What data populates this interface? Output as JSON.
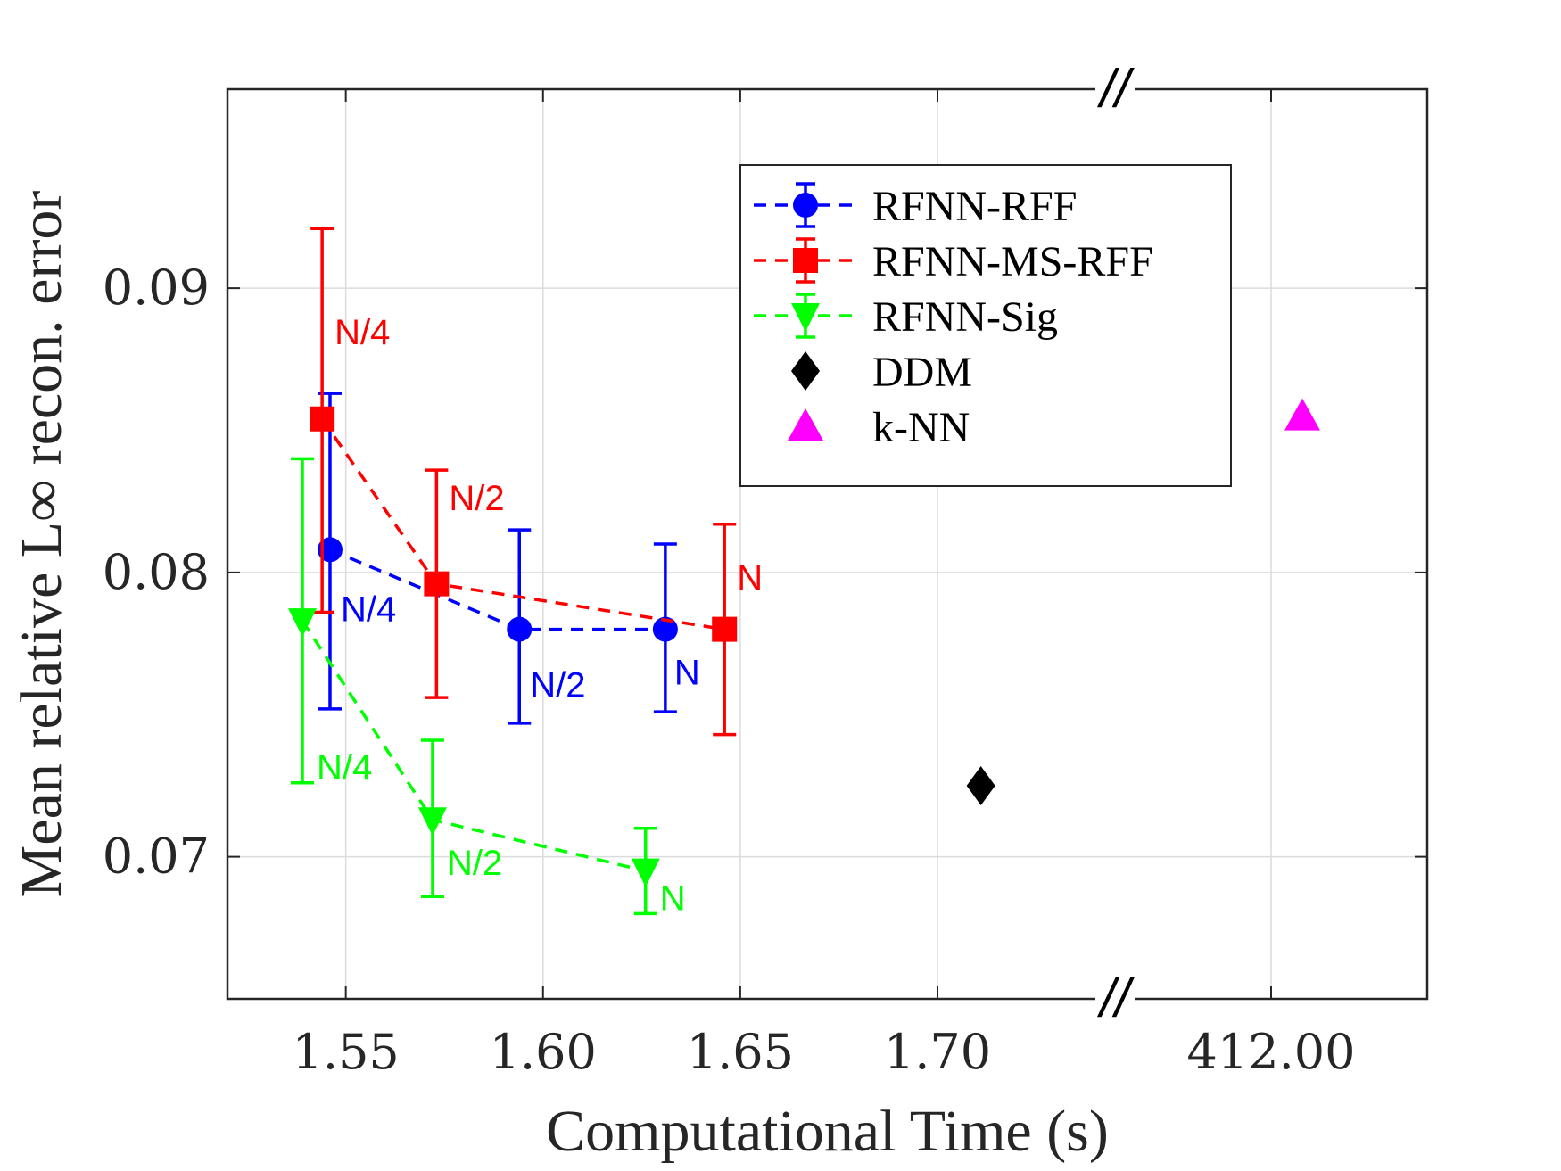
{
  "chart_data": {
    "type": "scatter",
    "xlabel": "Computational Time (s)",
    "ylabel": "Mean relative L∞ recon. error",
    "x_ticks": [
      1.55,
      1.6,
      1.65,
      1.7,
      412.0
    ],
    "x_tick_labels": [
      "1.55",
      "1.60",
      "1.65",
      "1.70",
      "412.00"
    ],
    "x_break": {
      "after": 1.745,
      "resume": 411.97
    },
    "xlim": [
      1.52,
      412.03
    ],
    "ylim": [
      0.065,
      0.097
    ],
    "y_ticks": [
      0.07,
      0.08,
      0.09
    ],
    "y_tick_labels": [
      "0.07",
      "0.08",
      "0.09"
    ],
    "grid": true,
    "legend_position": "top-right",
    "series": [
      {
        "name": "RFNN-RFF",
        "color": "#0000ff",
        "marker": "circle",
        "line": "dashed",
        "points": [
          {
            "x": 1.546,
            "y": 0.0808,
            "err_low": 0.0752,
            "err_high": 0.0863,
            "label": "N/4"
          },
          {
            "x": 1.594,
            "y": 0.078,
            "err_low": 0.0747,
            "err_high": 0.0815,
            "label": "N/2"
          },
          {
            "x": 1.631,
            "y": 0.078,
            "err_low": 0.0751,
            "err_high": 0.081,
            "label": "N"
          }
        ]
      },
      {
        "name": "RFNN-MS-RFF",
        "color": "#ff0000",
        "marker": "square",
        "line": "dashed",
        "points": [
          {
            "x": 1.544,
            "y": 0.0854,
            "err_low": 0.0786,
            "err_high": 0.0921,
            "label": "N/4"
          },
          {
            "x": 1.573,
            "y": 0.0796,
            "err_low": 0.0756,
            "err_high": 0.0836,
            "label": "N/2"
          },
          {
            "x": 1.646,
            "y": 0.078,
            "err_low": 0.0743,
            "err_high": 0.0817,
            "label": "N"
          }
        ]
      },
      {
        "name": "RFNN-Sig",
        "color": "#00ff00",
        "marker": "triangle-down",
        "line": "dashed",
        "points": [
          {
            "x": 1.539,
            "y": 0.0783,
            "err_low": 0.0726,
            "err_high": 0.084,
            "label": "N/4"
          },
          {
            "x": 1.572,
            "y": 0.0713,
            "err_low": 0.0686,
            "err_high": 0.0741,
            "label": "N/2"
          },
          {
            "x": 1.626,
            "y": 0.0695,
            "err_low": 0.068,
            "err_high": 0.071,
            "label": "N"
          }
        ]
      },
      {
        "name": "DDM",
        "color": "#000000",
        "marker": "diamond",
        "line": "none",
        "points": [
          {
            "x": 1.711,
            "y": 0.0725
          }
        ]
      },
      {
        "name": "k-NN",
        "color": "#ff00ff",
        "marker": "triangle-up",
        "line": "none",
        "points": [
          {
            "x": 412.006,
            "y": 0.0855
          }
        ]
      }
    ],
    "break_symbol": "//"
  }
}
